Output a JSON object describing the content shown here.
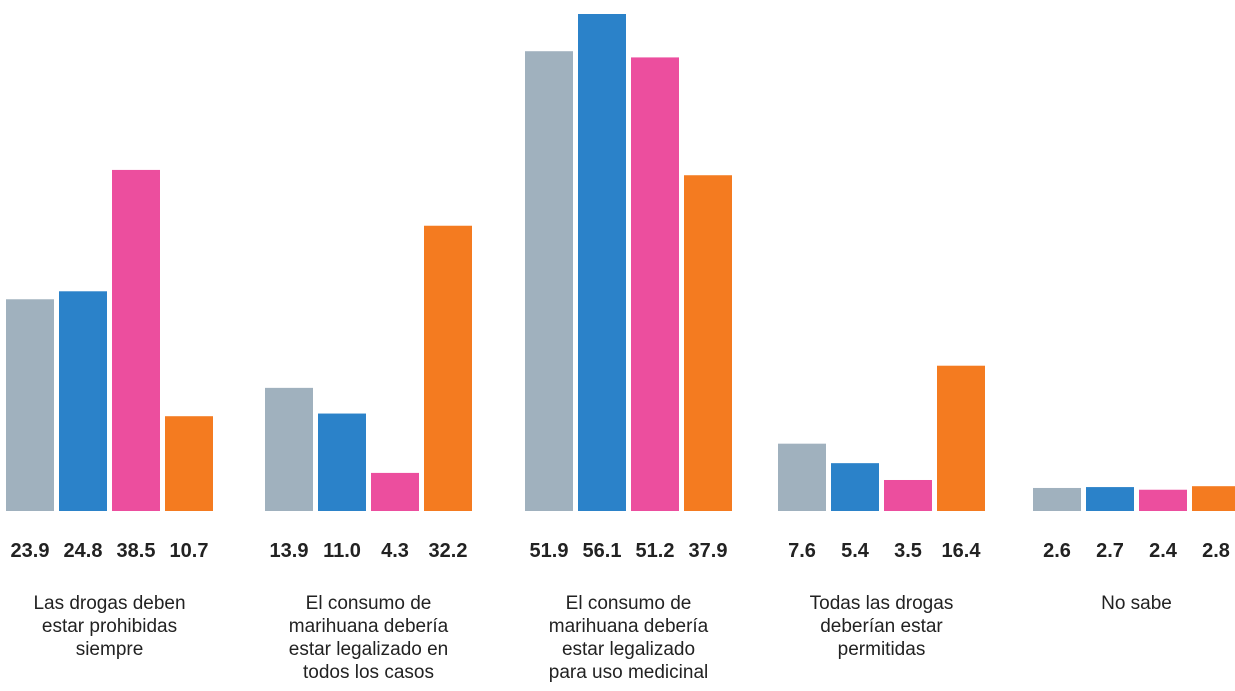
{
  "chart_data": {
    "type": "bar",
    "categories": [
      "Las drogas deben\nestar prohibidas\nsiempre",
      "El consumo de\nmarihuana debería\nestar legalizado en\ntodos los casos",
      "El consumo de\nmarihuana debería\nestar legalizado\npara uso medicinal",
      "Todas las drogas\ndeberían estar\npermitidas",
      "No sabe"
    ],
    "series": [
      {
        "color": "#a0b1be",
        "values": [
          23.9,
          13.9,
          51.9,
          7.6,
          2.6
        ],
        "value_labels": [
          "23.9",
          "13.9",
          "51.9",
          "7.6",
          "2.6"
        ]
      },
      {
        "color": "#2b82c9",
        "values": [
          24.8,
          11.0,
          56.1,
          5.4,
          2.7
        ],
        "value_labels": [
          "24.8",
          "11.0",
          "56.1",
          "5.4",
          "2.7"
        ]
      },
      {
        "color": "#ec4e9e",
        "values": [
          38.5,
          4.3,
          51.2,
          3.5,
          2.4
        ],
        "value_labels": [
          "38.5",
          "4.3",
          "51.2",
          "3.5",
          "2.4"
        ]
      },
      {
        "color": "#f47b20",
        "values": [
          10.7,
          32.2,
          37.9,
          16.4,
          2.8
        ],
        "value_labels": [
          "10.7",
          "32.2",
          "37.9",
          "16.4",
          "2.8"
        ]
      }
    ],
    "title": "",
    "xlabel": "",
    "ylabel": "",
    "ylim": [
      0,
      56.1
    ],
    "grid": false,
    "legend": "none"
  }
}
